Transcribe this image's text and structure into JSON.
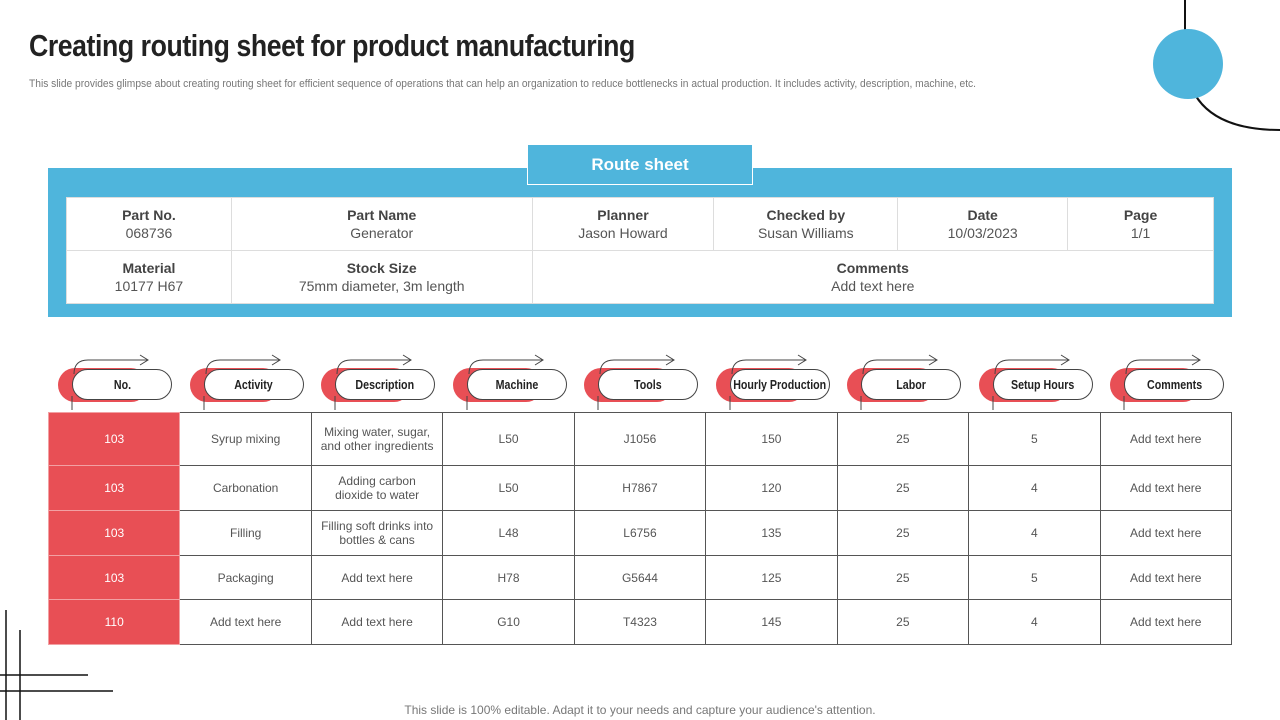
{
  "title": "Creating routing sheet for product manufacturing",
  "subtitle": "This slide provides glimpse about creating routing sheet for efficient sequence of operations that can help an organization to reduce bottlenecks in actual production. It includes activity, description, machine, etc.",
  "route_sheet": {
    "tab_label": "Route sheet",
    "part_no": {
      "label": "Part No.",
      "value": "068736"
    },
    "part_name": {
      "label": "Part Name",
      "value": "Generator"
    },
    "planner": {
      "label": "Planner",
      "value": "Jason Howard"
    },
    "checked_by": {
      "label": "Checked by",
      "value": "Susan Williams"
    },
    "date": {
      "label": "Date",
      "value": "10/03/2023"
    },
    "page": {
      "label": "Page",
      "value": "1/1"
    },
    "material": {
      "label": "Material",
      "value": "10177 H67"
    },
    "stock_size": {
      "label": "Stock Size",
      "value": "75mm diameter, 3m length"
    },
    "comments": {
      "label": "Comments",
      "value": "Add text here"
    }
  },
  "columns": [
    "No.",
    "Activity",
    "Description",
    "Machine",
    "Tools",
    "Hourly Production",
    "Labor",
    "Setup Hours",
    "Comments"
  ],
  "rows": [
    [
      "103",
      "Syrup mixing",
      "Mixing water, sugar, and other ingredients",
      "L50",
      "J1056",
      "150",
      "25",
      "5",
      "Add text here"
    ],
    [
      "103",
      "Carbonation",
      "Adding carbon dioxide to water",
      "L50",
      "H7867",
      "120",
      "25",
      "4",
      "Add text here"
    ],
    [
      "103",
      "Filling",
      "Filling soft drinks into bottles & cans",
      "L48",
      "L6756",
      "135",
      "25",
      "4",
      "Add text here"
    ],
    [
      "103",
      "Packaging",
      "Add text here",
      "H78",
      "G5644",
      "125",
      "25",
      "5",
      "Add text here"
    ],
    [
      "110",
      "Add text here",
      "Add text here",
      "G10",
      "T4323",
      "145",
      "25",
      "4",
      "Add text here"
    ]
  ],
  "footer": "This slide is 100% editable. Adapt it to your needs and capture your audience's attention.",
  "colors": {
    "blue": "#4fb5dc",
    "red": "#e84f55"
  }
}
